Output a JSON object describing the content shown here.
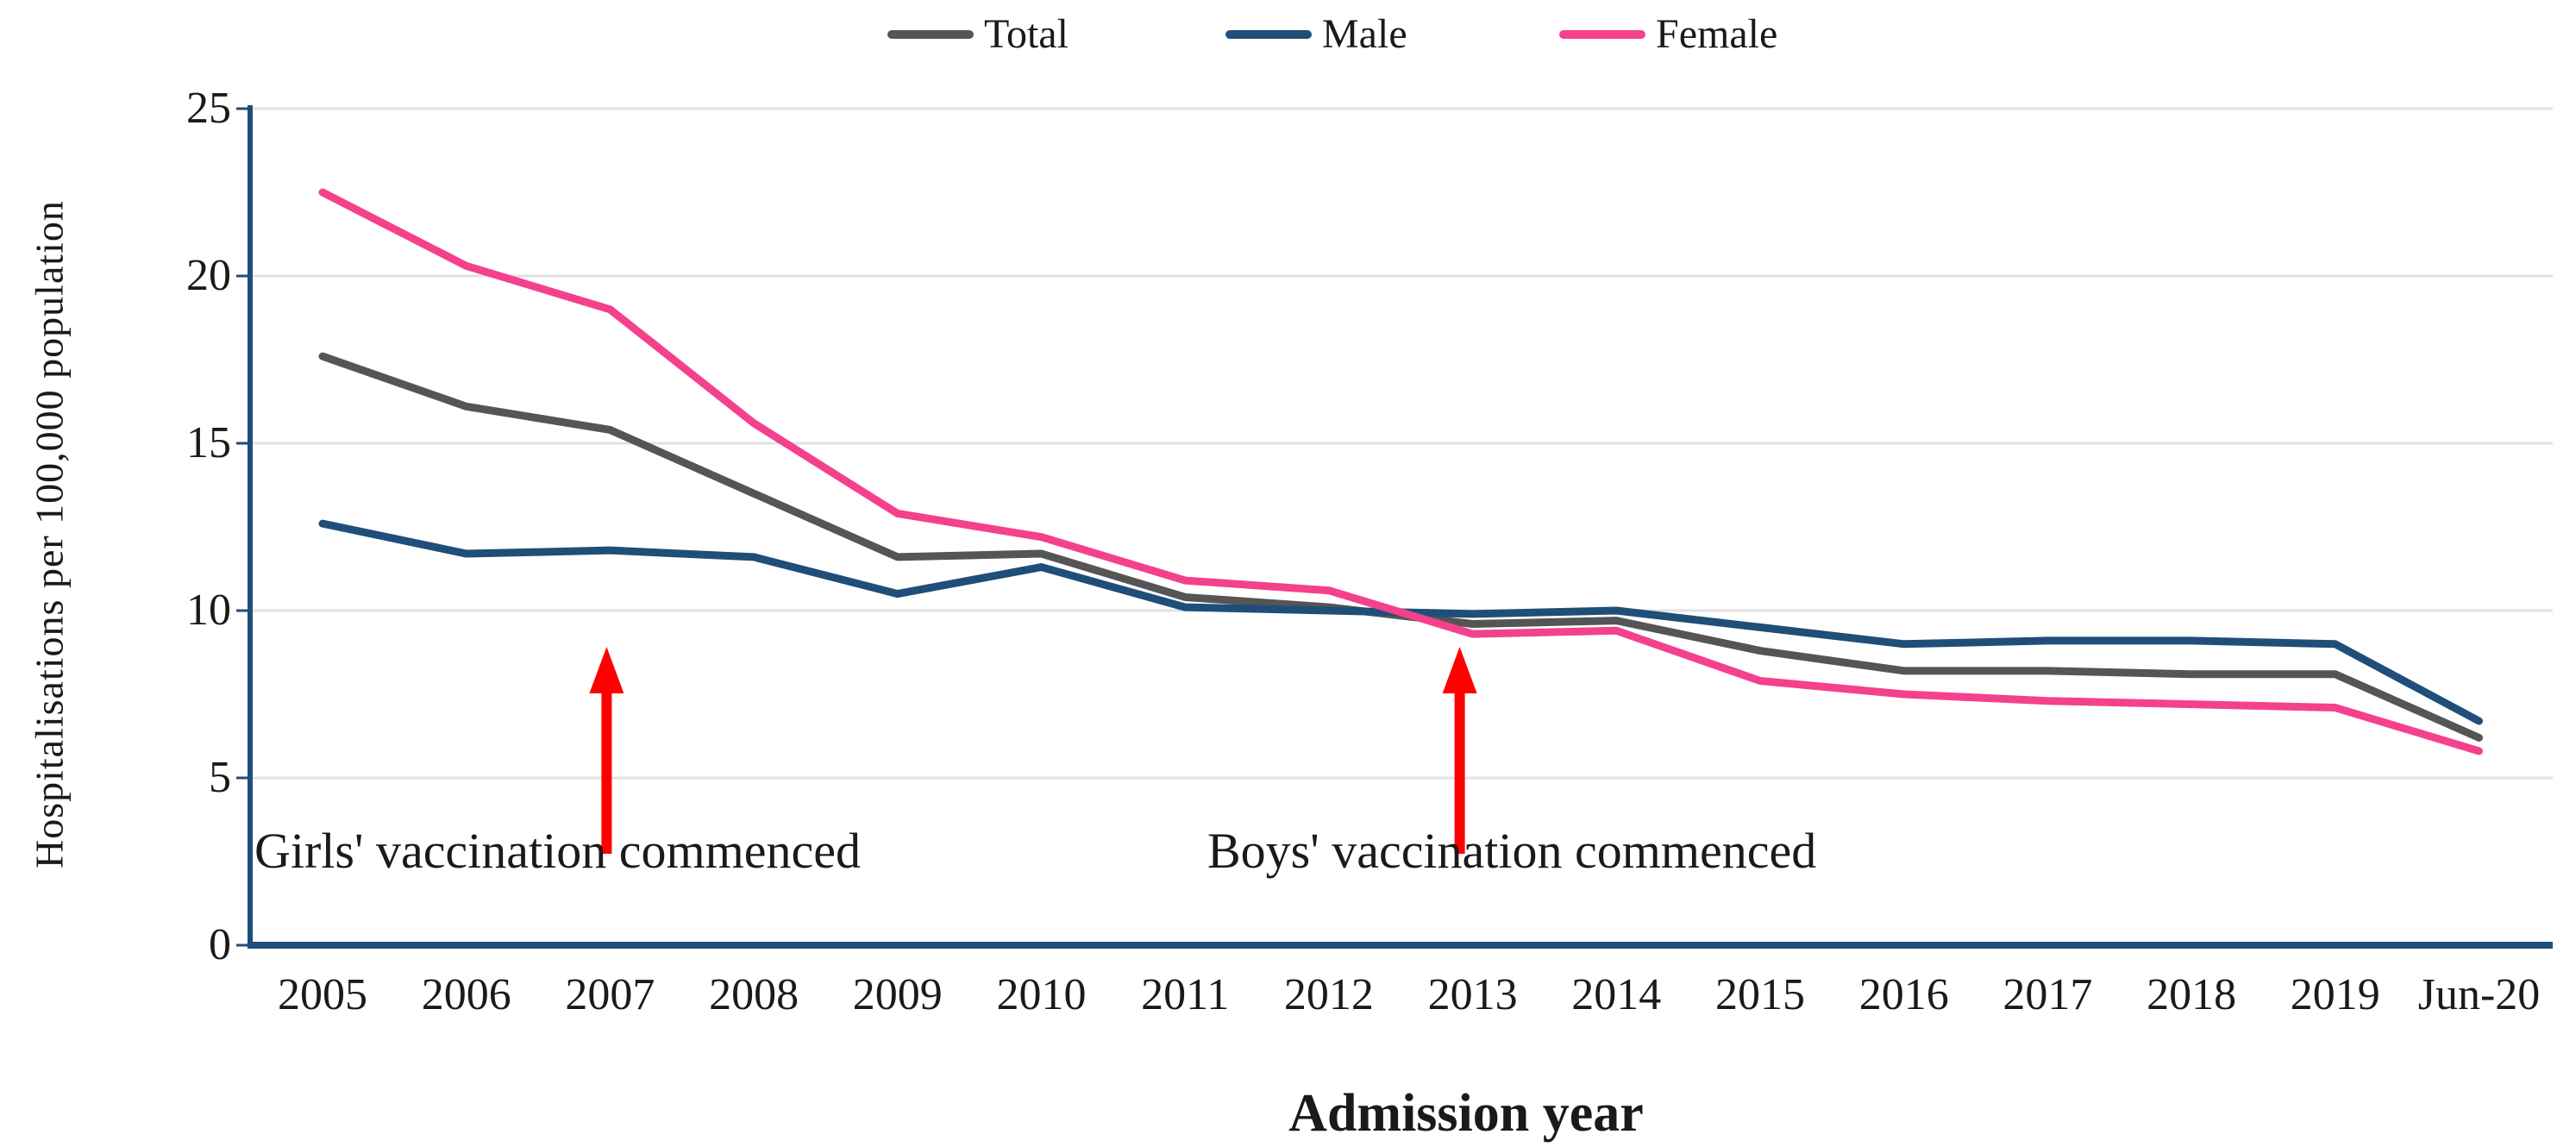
{
  "chart_data": {
    "type": "line",
    "title": "",
    "xlabel": "Admission year",
    "ylabel": "Hospitalisations per 100,000 population",
    "ylim": [
      0,
      25
    ],
    "y_ticks": [
      0,
      5,
      10,
      15,
      20,
      25
    ],
    "grid": "horizontal",
    "legend_position": "top-center",
    "categories": [
      "2005",
      "2006",
      "2007",
      "2008",
      "2009",
      "2010",
      "2011",
      "2012",
      "2013",
      "2014",
      "2015",
      "2016",
      "2017",
      "2018",
      "2019",
      "Jun-20"
    ],
    "series": [
      {
        "name": "Total",
        "color": "#555555",
        "values": [
          17.6,
          16.1,
          15.4,
          13.5,
          11.6,
          11.7,
          10.4,
          10.1,
          9.6,
          9.7,
          8.8,
          8.2,
          8.2,
          8.1,
          8.1,
          6.2
        ]
      },
      {
        "name": "Male",
        "color": "#1F4E79",
        "values": [
          12.6,
          11.7,
          11.8,
          11.6,
          10.5,
          11.3,
          10.1,
          10.0,
          9.9,
          10.0,
          9.5,
          9.0,
          9.1,
          9.1,
          9.0,
          6.7
        ]
      },
      {
        "name": "Female",
        "color": "#F4418D",
        "values": [
          22.5,
          20.3,
          19.0,
          15.6,
          12.9,
          12.2,
          10.9,
          10.6,
          9.3,
          9.4,
          7.9,
          7.5,
          7.3,
          7.2,
          7.1,
          5.8
        ]
      }
    ],
    "annotations": [
      {
        "text": "Girls' vaccination commenced",
        "arrow_at_category": "2007"
      },
      {
        "text": "Boys' vaccination commenced",
        "arrow_at_category": "2013"
      }
    ],
    "arrow_color": "#FF0000",
    "axis_color": "#1F4E79",
    "gridline_color": "#E2E2E2",
    "text_color": "#1a1a1a"
  }
}
